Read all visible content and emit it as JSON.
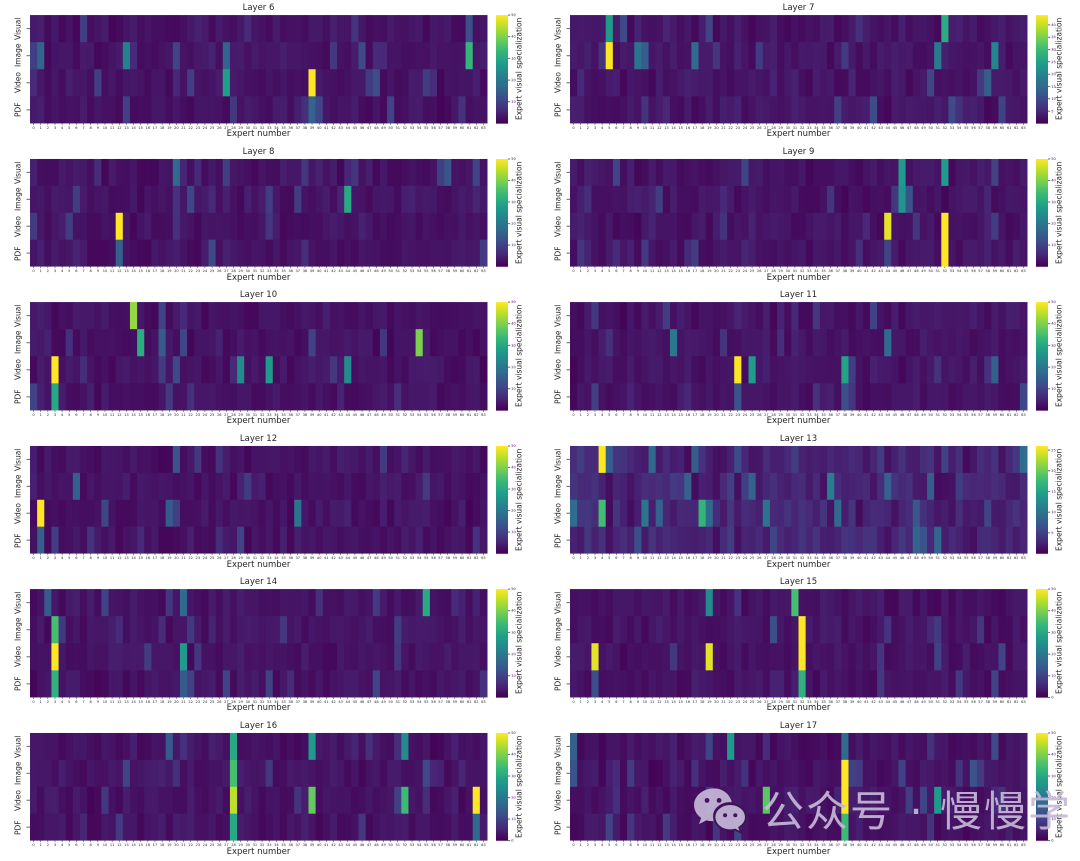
{
  "figure": {
    "xlabel": "Expert number",
    "colorbar_label": "Expert visual specialization",
    "row_labels": [
      "Visual",
      "Image",
      "Video",
      "PDF"
    ],
    "n_experts": 64,
    "first_expert": 0,
    "last_expert": 63
  },
  "watermark": {
    "icon": "wechat-icon",
    "text": "公众号 · 慢慢学 AIGC"
  },
  "colors": {
    "background": "#ffffff",
    "text": "#262626",
    "cmap": "viridis",
    "cmap_min": "#440154",
    "cmap_max": "#fde725",
    "watermark": "#c6b9d7"
  },
  "chart_data": {
    "type": "heatmap",
    "layout": "6 rows x 2 columns of subplots",
    "rows": [
      "Visual",
      "Image",
      "Video",
      "PDF"
    ],
    "n_cols": 64,
    "xlabel": "Expert number",
    "colorbar_label": "Expert visual specialization",
    "charts": [
      {
        "title": "Layer 6",
        "vmax": 50,
        "colorbar_ticks": [
          10,
          20,
          30,
          40,
          50
        ],
        "highlights": [
          {
            "r": "Visual",
            "c": 61,
            "v": 12
          },
          {
            "r": "Image",
            "c": 1,
            "v": 16
          },
          {
            "r": "Image",
            "c": 13,
            "v": 22
          },
          {
            "r": "Image",
            "c": 20,
            "v": 10
          },
          {
            "r": "Image",
            "c": 27,
            "v": 16
          },
          {
            "r": "Image",
            "c": 46,
            "v": 11
          },
          {
            "r": "Image",
            "c": 61,
            "v": 33
          },
          {
            "r": "Video",
            "c": 27,
            "v": 28
          },
          {
            "r": "Video",
            "c": 39,
            "v": 50
          },
          {
            "r": "PDF",
            "c": 39,
            "v": 16
          }
        ]
      },
      {
        "title": "Layer 7",
        "vmax": 44,
        "colorbar_ticks": [
          5,
          10,
          15,
          20,
          25,
          30,
          35,
          40
        ],
        "highlights": [
          {
            "r": "Visual",
            "c": 5,
            "v": 24
          },
          {
            "r": "Visual",
            "c": 52,
            "v": 27
          },
          {
            "r": "Image",
            "c": 5,
            "v": 44
          },
          {
            "r": "Image",
            "c": 9,
            "v": 17
          },
          {
            "r": "Image",
            "c": 10,
            "v": 13
          },
          {
            "r": "Image",
            "c": 17,
            "v": 15
          },
          {
            "r": "Image",
            "c": 51,
            "v": 18
          },
          {
            "r": "Image",
            "c": 59,
            "v": 20
          },
          {
            "r": "Video",
            "c": 50,
            "v": 9
          },
          {
            "r": "Video",
            "c": 58,
            "v": 13
          }
        ]
      },
      {
        "title": "Layer 8",
        "vmax": 50,
        "colorbar_ticks": [
          10,
          20,
          30,
          40,
          50
        ],
        "highlights": [
          {
            "r": "Visual",
            "c": 20,
            "v": 17
          },
          {
            "r": "Visual",
            "c": 58,
            "v": 13
          },
          {
            "r": "Image",
            "c": 6,
            "v": 9
          },
          {
            "r": "Image",
            "c": 44,
            "v": 30
          },
          {
            "r": "Video",
            "c": 12,
            "v": 50
          },
          {
            "r": "PDF",
            "c": 12,
            "v": 15
          }
        ]
      },
      {
        "title": "Layer 9",
        "vmax": 50,
        "colorbar_ticks": [
          10,
          20,
          30,
          40,
          50
        ],
        "highlights": [
          {
            "r": "Visual",
            "c": 24,
            "v": 10
          },
          {
            "r": "Visual",
            "c": 46,
            "v": 27
          },
          {
            "r": "Visual",
            "c": 52,
            "v": 27
          },
          {
            "r": "Image",
            "c": 12,
            "v": 9
          },
          {
            "r": "Image",
            "c": 46,
            "v": 26
          },
          {
            "r": "Image",
            "c": 47,
            "v": 13
          },
          {
            "r": "Video",
            "c": 44,
            "v": 48
          },
          {
            "r": "Video",
            "c": 52,
            "v": 50
          },
          {
            "r": "PDF",
            "c": 44,
            "v": 10
          },
          {
            "r": "PDF",
            "c": 52,
            "v": 50
          }
        ]
      },
      {
        "title": "Layer 10",
        "vmax": 50,
        "colorbar_ticks": [
          10,
          20,
          30,
          40,
          50
        ],
        "highlights": [
          {
            "r": "Visual",
            "c": 14,
            "v": 42
          },
          {
            "r": "Image",
            "c": 15,
            "v": 31
          },
          {
            "r": "Image",
            "c": 18,
            "v": 14
          },
          {
            "r": "Image",
            "c": 54,
            "v": 40
          },
          {
            "r": "Video",
            "c": 3,
            "v": 50
          },
          {
            "r": "Video",
            "c": 29,
            "v": 24
          },
          {
            "r": "Video",
            "c": 33,
            "v": 27
          },
          {
            "r": "Video",
            "c": 44,
            "v": 24
          },
          {
            "r": "PDF",
            "c": 3,
            "v": 30
          }
        ]
      },
      {
        "title": "Layer 11",
        "vmax": 50,
        "colorbar_ticks": [
          10,
          20,
          30,
          40,
          50
        ],
        "highlights": [
          {
            "r": "Visual",
            "c": 13,
            "v": 9
          },
          {
            "r": "Image",
            "c": 14,
            "v": 20
          },
          {
            "r": "Image",
            "c": 44,
            "v": 17
          },
          {
            "r": "Video",
            "c": 23,
            "v": 50
          },
          {
            "r": "Video",
            "c": 25,
            "v": 27
          },
          {
            "r": "Video",
            "c": 38,
            "v": 29
          },
          {
            "r": "Video",
            "c": 59,
            "v": 15
          },
          {
            "r": "PDF",
            "c": 23,
            "v": 13
          },
          {
            "r": "PDF",
            "c": 38,
            "v": 12
          }
        ]
      },
      {
        "title": "Layer 12",
        "vmax": 50,
        "colorbar_ticks": [
          10,
          20,
          30,
          40,
          50
        ],
        "highlights": [
          {
            "r": "Visual",
            "c": 20,
            "v": 13
          },
          {
            "r": "Image",
            "c": 6,
            "v": 15
          },
          {
            "r": "Video",
            "c": 1,
            "v": 50
          },
          {
            "r": "Video",
            "c": 19,
            "v": 14
          },
          {
            "r": "Video",
            "c": 37,
            "v": 19
          },
          {
            "r": "PDF",
            "c": 1,
            "v": 15
          }
        ]
      },
      {
        "title": "Layer 13",
        "vmax": 26,
        "colorbar_ticks": [
          5,
          10,
          15,
          20,
          25
        ],
        "highlights": [
          {
            "r": "Visual",
            "c": 4,
            "v": 26
          },
          {
            "r": "Image",
            "c": 16,
            "v": 8
          },
          {
            "r": "Image",
            "c": 25,
            "v": 8
          },
          {
            "r": "Image",
            "c": 36,
            "v": 11
          },
          {
            "r": "Image",
            "c": 44,
            "v": 8
          },
          {
            "r": "Video",
            "c": 4,
            "v": 18
          },
          {
            "r": "Video",
            "c": 18,
            "v": 17
          },
          {
            "r": "Video",
            "c": 27,
            "v": 10
          },
          {
            "r": "Video",
            "c": 37,
            "v": 9
          },
          {
            "r": "Video",
            "c": 48,
            "v": 7
          }
        ]
      },
      {
        "title": "Layer 14",
        "vmax": 50,
        "colorbar_ticks": [
          10,
          20,
          30,
          40,
          50
        ],
        "highlights": [
          {
            "r": "Visual",
            "c": 2,
            "v": 14
          },
          {
            "r": "Visual",
            "c": 10,
            "v": 10
          },
          {
            "r": "Visual",
            "c": 21,
            "v": 17
          },
          {
            "r": "Visual",
            "c": 55,
            "v": 30
          },
          {
            "r": "Image",
            "c": 3,
            "v": 35
          },
          {
            "r": "Video",
            "c": 3,
            "v": 50
          },
          {
            "r": "Video",
            "c": 16,
            "v": 9
          },
          {
            "r": "Video",
            "c": 21,
            "v": 27
          },
          {
            "r": "PDF",
            "c": 3,
            "v": 32
          },
          {
            "r": "PDF",
            "c": 21,
            "v": 14
          }
        ]
      },
      {
        "title": "Layer 15",
        "vmax": 50,
        "colorbar_ticks": [
          0,
          10,
          20,
          30,
          40,
          50
        ],
        "highlights": [
          {
            "r": "Visual",
            "c": 19,
            "v": 24
          },
          {
            "r": "Visual",
            "c": 31,
            "v": 35
          },
          {
            "r": "Image",
            "c": 28,
            "v": 12
          },
          {
            "r": "Image",
            "c": 32,
            "v": 50
          },
          {
            "r": "Video",
            "c": 3,
            "v": 48
          },
          {
            "r": "Video",
            "c": 19,
            "v": 48
          },
          {
            "r": "Video",
            "c": 32,
            "v": 50
          },
          {
            "r": "Video",
            "c": 60,
            "v": 10
          },
          {
            "r": "PDF",
            "c": 3,
            "v": 12
          },
          {
            "r": "PDF",
            "c": 32,
            "v": 32
          }
        ]
      },
      {
        "title": "Layer 16",
        "vmax": 50,
        "colorbar_ticks": [
          0,
          10,
          20,
          30,
          40,
          50
        ],
        "highlights": [
          {
            "r": "Visual",
            "c": 19,
            "v": 14
          },
          {
            "r": "Visual",
            "c": 28,
            "v": 30
          },
          {
            "r": "Visual",
            "c": 39,
            "v": 27
          },
          {
            "r": "Visual",
            "c": 52,
            "v": 24
          },
          {
            "r": "Image",
            "c": 13,
            "v": 10
          },
          {
            "r": "Image",
            "c": 28,
            "v": 35
          },
          {
            "r": "Video",
            "c": 28,
            "v": 45
          },
          {
            "r": "Video",
            "c": 39,
            "v": 38
          },
          {
            "r": "Video",
            "c": 52,
            "v": 34
          },
          {
            "r": "Video",
            "c": 62,
            "v": 50
          },
          {
            "r": "PDF",
            "c": 28,
            "v": 30
          },
          {
            "r": "PDF",
            "c": 62,
            "v": 17
          }
        ]
      },
      {
        "title": "Layer 17",
        "vmax": 50,
        "colorbar_ticks": [
          0,
          10,
          20,
          30,
          40,
          50
        ],
        "highlights": [
          {
            "r": "Visual",
            "c": 0,
            "v": 15
          },
          {
            "r": "Visual",
            "c": 22,
            "v": 27
          },
          {
            "r": "Visual",
            "c": 38,
            "v": 17
          },
          {
            "r": "Image",
            "c": 0,
            "v": 13
          },
          {
            "r": "Image",
            "c": 38,
            "v": 50
          },
          {
            "r": "Image",
            "c": 56,
            "v": 13
          },
          {
            "r": "Video",
            "c": 27,
            "v": 37
          },
          {
            "r": "Video",
            "c": 38,
            "v": 50
          },
          {
            "r": "Video",
            "c": 51,
            "v": 27
          },
          {
            "r": "PDF",
            "c": 38,
            "v": 34
          }
        ]
      }
    ]
  }
}
